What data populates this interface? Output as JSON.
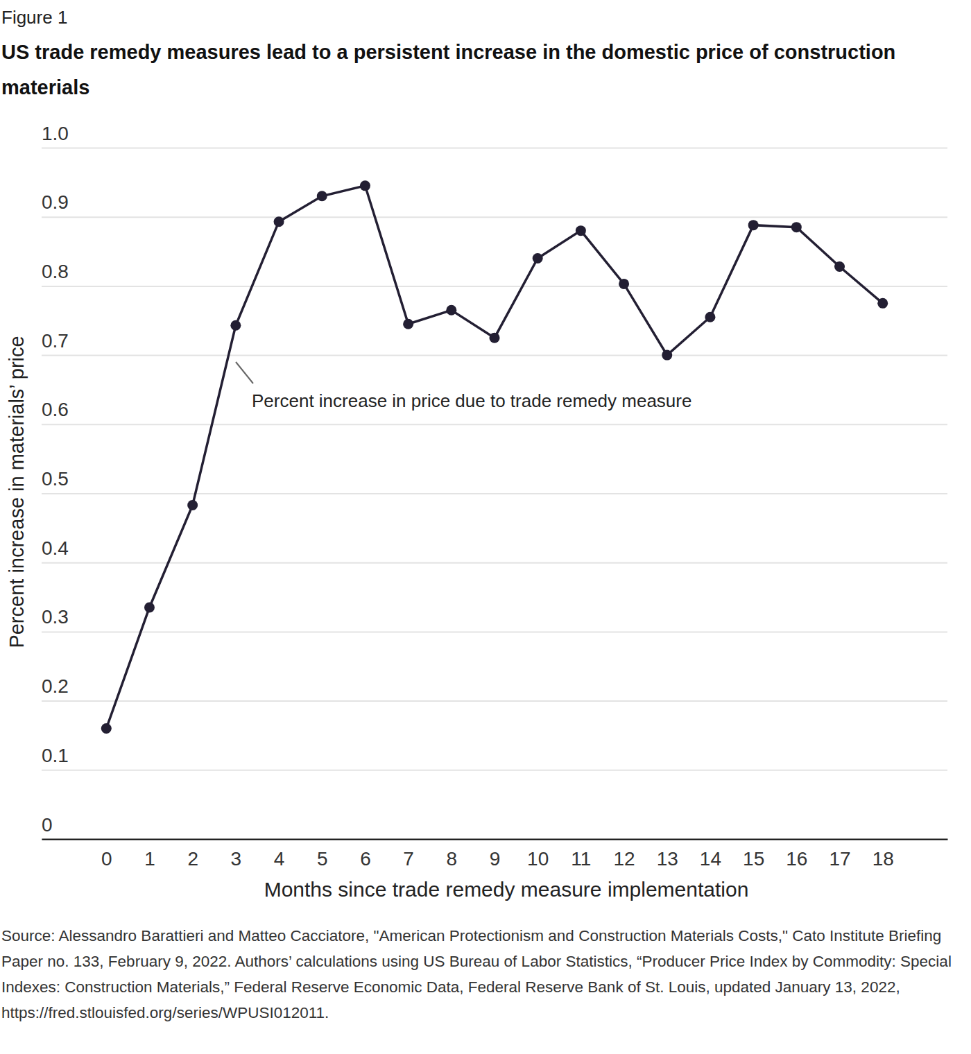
{
  "chart_data": {
    "type": "line",
    "figure_label": "Figure 1",
    "title": "US trade remedy measures lead to a persistent increase in the domestic price of construction materials",
    "x_label": "Months since trade remedy measure implementation",
    "y_label": "Percent increase in materials’ price",
    "annotation": "Percent increase in price due to trade remedy measure",
    "source": "Source: Alessandro Barattieri and Matteo Cacciatore, \"American Protectionism and Construction Materials Costs,\" Cato Institute Briefing Paper no. 133, February 9, 2022. Authors’ calculations using US Bureau of Labor Statistics, “Producer Price Index by Commodity: Special Indexes: Construction Materials,” Federal Reserve Economic Data, Federal Reserve Bank of St. Louis, updated January 13, 2022, https://fred.stlouisfed.org/series/WPUSI012011.",
    "x": [
      0,
      1,
      2,
      3,
      4,
      5,
      6,
      7,
      8,
      9,
      10,
      11,
      12,
      13,
      14,
      15,
      16,
      17,
      18
    ],
    "values": [
      0.16,
      0.335,
      0.483,
      0.743,
      0.893,
      0.93,
      0.945,
      0.745,
      0.765,
      0.725,
      0.84,
      0.88,
      0.803,
      0.7,
      0.755,
      0.888,
      0.885,
      0.828,
      0.775
    ],
    "color": "#231f33",
    "marker": "circle",
    "xlim": [
      -1.5,
      19.5
    ],
    "xticks": [
      0,
      1,
      2,
      3,
      4,
      5,
      6,
      7,
      8,
      9,
      10,
      11,
      12,
      13,
      14,
      15,
      16,
      17,
      18
    ],
    "ylim": [
      0,
      1
    ],
    "yticks": [
      0,
      0.1,
      0.2,
      0.3,
      0.4,
      0.5,
      0.6,
      0.7,
      0.8,
      0.9,
      {
        "value": 1,
        "label": "1.0"
      }
    ],
    "grid": true
  }
}
